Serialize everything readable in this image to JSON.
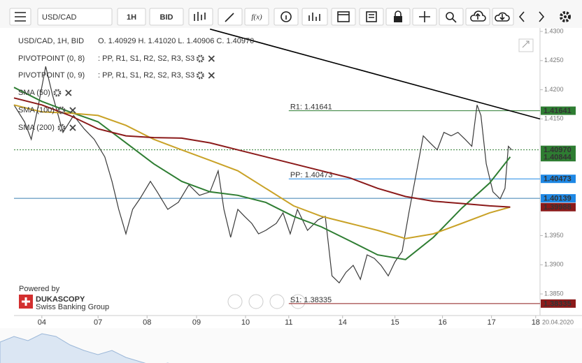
{
  "toolbar": {
    "fx": "f(x)"
  },
  "branding": {
    "powered": "Powered by",
    "name": "DUKASCOPY",
    "sub": "Swiss Banking Group"
  },
  "chart_data": {
    "type": "line",
    "title": "USD/CAD, 1H, BID",
    "period": "1H",
    "side": "BID",
    "ohlc": "O. 1.40929 H. 1.41020 L. 1.40906 C. 1.40970",
    "date_label": "20.04.2020",
    "indicators": [
      {
        "name": "PIVOTPOINT (0, 8)",
        "items": [
          {
            "text": ": PP,",
            "color": "#1e88e5"
          },
          {
            "text": "R1,",
            "color": "#2e7d32"
          },
          {
            "text": "S1,",
            "color": "#c62828"
          },
          {
            "text": "R2,",
            "color": "#c62828"
          },
          {
            "text": "S2,",
            "color": "#e08a00"
          },
          {
            "text": "R3,",
            "color": "#e0a800"
          },
          {
            "text": "S3",
            "color": "#e0a800"
          }
        ]
      },
      {
        "name": "PIVOTPOINT (0, 9)",
        "items": [
          {
            "text": ": PP,",
            "color": "#1e88e5"
          },
          {
            "text": "R1,",
            "color": "#2e7d32"
          },
          {
            "text": "S1,",
            "color": "#c62828"
          },
          {
            "text": "R2,",
            "color": "#c62828"
          },
          {
            "text": "S2,",
            "color": "#e08a00"
          },
          {
            "text": "R3,",
            "color": "#e0a800"
          },
          {
            "text": "S3",
            "color": "#e0a800"
          }
        ]
      }
    ],
    "xlim": [
      0,
      10.95
    ],
    "xticks": [
      {
        "value": 0.58,
        "label": "04"
      },
      {
        "value": 1.75,
        "label": "07"
      },
      {
        "value": 2.77,
        "label": "08"
      },
      {
        "value": 3.8,
        "label": "09"
      },
      {
        "value": 4.82,
        "label": "10"
      },
      {
        "value": 5.72,
        "label": "11"
      },
      {
        "value": 6.84,
        "label": "14"
      },
      {
        "value": 7.93,
        "label": "15"
      },
      {
        "value": 8.92,
        "label": "16"
      },
      {
        "value": 9.94,
        "label": "17"
      },
      {
        "value": 10.86,
        "label": "18"
      }
    ],
    "ylim": [
      1.3813,
      1.4306
    ],
    "yticks": [
      {
        "value": 1.43,
        "label": "1.4300"
      },
      {
        "value": 1.425,
        "label": "1.4250"
      },
      {
        "value": 1.42,
        "label": "1.4200"
      },
      {
        "value": 1.415,
        "label": "1.4150"
      },
      {
        "value": 1.395,
        "label": "1.3950"
      },
      {
        "value": 1.39,
        "label": "1.3900"
      },
      {
        "value": 1.385,
        "label": "1.3850"
      }
    ],
    "series": [
      {
        "name": "USD/CAD",
        "color": "#3a3a3a",
        "x": [
          0,
          0.22,
          0.36,
          0.51,
          0.66,
          0.8,
          1.02,
          1.24,
          1.46,
          1.67,
          1.89,
          2.04,
          2.18,
          2.33,
          2.47,
          2.62,
          2.84,
          2.98,
          3.2,
          3.42,
          3.64,
          3.86,
          4.08,
          4.25,
          4.37,
          4.51,
          4.66,
          4.8,
          4.95,
          5.09,
          5.24,
          5.46,
          5.6,
          5.75,
          5.9,
          6.11,
          6.33,
          6.48,
          6.62,
          6.77,
          6.91,
          7.06,
          7.21,
          7.35,
          7.5,
          7.64,
          7.79,
          7.93,
          8.08,
          8.22,
          8.37,
          8.52,
          8.66,
          8.81,
          8.95,
          9.1,
          9.24,
          9.39,
          9.53,
          9.64,
          9.72,
          9.83,
          9.97,
          10.12,
          10.22,
          10.29,
          10.36
        ],
        "values": [
          1.4174,
          1.4145,
          1.4115,
          1.4174,
          1.424,
          1.4192,
          1.4127,
          1.4156,
          1.4133,
          1.4115,
          1.4085,
          1.4043,
          1.3995,
          1.3953,
          1.3995,
          1.4013,
          1.4043,
          1.4025,
          1.3995,
          1.4007,
          1.4037,
          1.4019,
          1.4025,
          1.4061,
          1.3995,
          1.3947,
          1.3995,
          1.3983,
          1.3971,
          1.3953,
          1.3959,
          1.3971,
          1.3989,
          1.3953,
          1.3995,
          1.3959,
          1.3977,
          1.3983,
          1.3881,
          1.3869,
          1.3887,
          1.3899,
          1.3875,
          1.3917,
          1.3911,
          1.3899,
          1.3881,
          1.3905,
          1.3923,
          1.3989,
          1.4055,
          1.4121,
          1.4109,
          1.4097,
          1.4127,
          1.4121,
          1.4127,
          1.4115,
          1.4103,
          1.4174,
          1.4156,
          1.4073,
          1.4025,
          1.4013,
          1.4031,
          1.4103,
          1.4097
        ]
      },
      {
        "name": "SMA (50)",
        "color": "#2e7d32",
        "x": [
          0,
          0.58,
          1.16,
          1.75,
          2.33,
          2.91,
          3.49,
          4.08,
          4.66,
          5.24,
          5.82,
          6.4,
          6.99,
          7.57,
          8.15,
          8.73,
          9.32,
          9.9,
          10.33
        ],
        "values": [
          1.4204,
          1.418,
          1.4162,
          1.4145,
          1.4109,
          1.4073,
          1.4043,
          1.4025,
          1.4019,
          1.4007,
          1.3983,
          1.3965,
          1.3941,
          1.3917,
          1.3909,
          1.3947,
          1.3997,
          1.404,
          1.4085
        ]
      },
      {
        "name": "SMA (100)",
        "color": "#c9a227",
        "x": [
          0,
          0.58,
          1.16,
          1.75,
          2.33,
          2.91,
          3.49,
          4.08,
          4.66,
          5.24,
          5.82,
          6.4,
          6.99,
          7.57,
          8.15,
          8.73,
          9.32,
          9.9,
          10.33
        ],
        "values": [
          1.4174,
          1.4162,
          1.416,
          1.4156,
          1.4139,
          1.4115,
          1.4097,
          1.4079,
          1.4061,
          1.4031,
          1.4001,
          1.3983,
          1.3971,
          1.3959,
          1.3945,
          1.3953,
          1.3971,
          1.3989,
          1.3999
        ]
      },
      {
        "name": "SMA (200)",
        "color": "#8b1a1a",
        "x": [
          0,
          0.58,
          1.16,
          1.75,
          2.33,
          2.91,
          3.49,
          4.08,
          4.66,
          5.24,
          5.82,
          6.4,
          6.99,
          7.57,
          8.15,
          8.73,
          9.32,
          9.9,
          10.33
        ],
        "values": [
          1.4186,
          1.4174,
          1.4156,
          1.4133,
          1.4121,
          1.4118,
          1.4117,
          1.4109,
          1.4097,
          1.4085,
          1.4073,
          1.4061,
          1.4049,
          1.4031,
          1.4017,
          1.4009,
          1.4005,
          1.4001,
          1.3999
        ]
      }
    ],
    "trendline": {
      "color": "#000000",
      "x": [
        4.08,
        10.95
      ],
      "values": [
        1.4304,
        1.415
      ]
    },
    "levels": [
      {
        "label": "R1: 1.41641",
        "value": 1.41641,
        "start": 5.72,
        "color": "#2e7d32"
      },
      {
        "label": "PP: 1.40473",
        "value": 1.40473,
        "start": 5.72,
        "color": "#1e88e5"
      },
      {
        "label": "S1: 1.38335",
        "value": 1.38335,
        "start": 5.72,
        "color": "#8b1a1a"
      },
      {
        "value": 1.40139,
        "start": 0,
        "color": "#3a7fb0"
      }
    ],
    "price_tags": [
      {
        "value": 1.41641,
        "label": "1.41641",
        "color": "#2e7d32"
      },
      {
        "value": 1.40844,
        "label": "1.40844",
        "color": "#2e7d32"
      },
      {
        "value": 1.4097,
        "label": "1.40970",
        "color": "#2e7d32"
      },
      {
        "value": 1.40473,
        "label": "1.40473",
        "color": "#1e88e5"
      },
      {
        "value": 1.40139,
        "label": "1.40139",
        "color": "#1e88e5"
      },
      {
        "value": 1.39988,
        "label": "1.39988",
        "color": "#8b1a1a"
      },
      {
        "value": 1.38335,
        "label": "1.38335",
        "color": "#8b1a1a"
      }
    ],
    "current": 1.4097
  }
}
